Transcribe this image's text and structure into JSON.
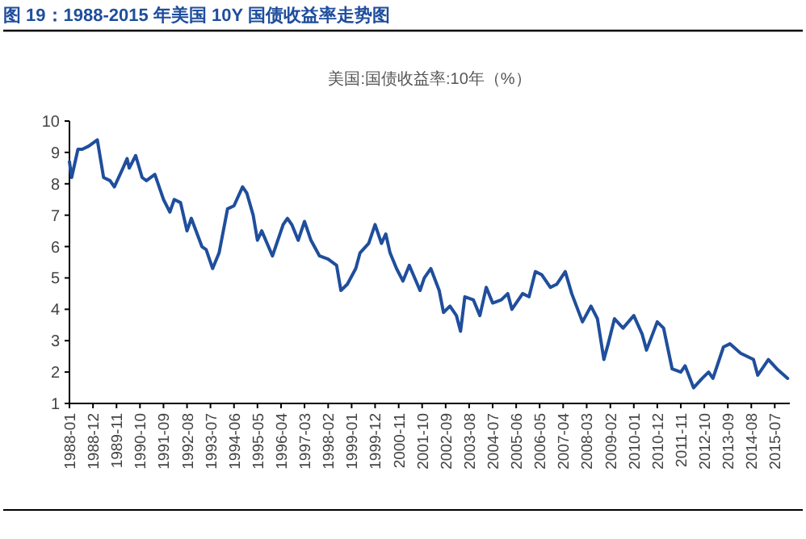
{
  "chart_data": {
    "type": "line",
    "title": "图 19：1988-2015 年美国 10Y 国债收益率走势图",
    "subtitle": "美国:国债收益率:10年（%）",
    "x": [
      "1988-01",
      "1988-02",
      "1988-05",
      "1988-07",
      "1988-10",
      "1989-02",
      "1989-05",
      "1989-08",
      "1989-10",
      "1990-02",
      "1990-04",
      "1990-05",
      "1990-08",
      "1990-11",
      "1991-01",
      "1991-05",
      "1991-09",
      "1991-12",
      "1992-02",
      "1992-05",
      "1992-08",
      "1992-10",
      "1993-03",
      "1993-05",
      "1993-08",
      "1993-11",
      "1994-03",
      "1994-06",
      "1994-10",
      "1994-12",
      "1995-03",
      "1995-05",
      "1995-07",
      "1995-12",
      "1996-05",
      "1996-07",
      "1996-09",
      "1996-12",
      "1997-03",
      "1997-06",
      "1997-10",
      "1998-02",
      "1998-06",
      "1998-08",
      "1998-11",
      "1999-03",
      "1999-05",
      "1999-09",
      "1999-12",
      "2000-03",
      "2000-05",
      "2000-07",
      "2000-10",
      "2001-01",
      "2001-04",
      "2001-09",
      "2001-11",
      "2002-02",
      "2002-06",
      "2002-08",
      "2002-11",
      "2003-02",
      "2003-04",
      "2003-06",
      "2003-10",
      "2004-01",
      "2004-04",
      "2004-07",
      "2004-11",
      "2005-02",
      "2005-04",
      "2005-09",
      "2005-12",
      "2006-03",
      "2006-06",
      "2006-10",
      "2007-01",
      "2007-05",
      "2007-08",
      "2008-01",
      "2008-05",
      "2008-08",
      "2008-11",
      "2009-01",
      "2009-04",
      "2009-08",
      "2010-01",
      "2010-05",
      "2010-07",
      "2010-12",
      "2011-03",
      "2011-07",
      "2011-11",
      "2012-01",
      "2012-05",
      "2012-09",
      "2012-12",
      "2013-02",
      "2013-07",
      "2013-10",
      "2014-03",
      "2014-09",
      "2014-11",
      "2015-04",
      "2015-08",
      "2016-01"
    ],
    "series": [
      {
        "color": "#1f4e9c",
        "values": [
          8.7,
          8.2,
          9.1,
          9.1,
          9.2,
          9.4,
          8.2,
          8.1,
          7.9,
          8.5,
          8.8,
          8.5,
          8.9,
          8.2,
          8.1,
          8.3,
          7.5,
          7.1,
          7.5,
          7.4,
          6.5,
          6.9,
          6.0,
          5.9,
          5.3,
          5.8,
          7.2,
          7.3,
          7.9,
          7.7,
          7.0,
          6.2,
          6.5,
          5.7,
          6.7,
          6.9,
          6.7,
          6.2,
          6.8,
          6.2,
          5.7,
          5.6,
          5.4,
          4.6,
          4.8,
          5.3,
          5.8,
          6.1,
          6.7,
          6.1,
          6.4,
          5.8,
          5.3,
          4.9,
          5.4,
          4.6,
          5.0,
          5.3,
          4.6,
          3.9,
          4.1,
          3.8,
          3.3,
          4.4,
          4.3,
          3.8,
          4.7,
          4.2,
          4.3,
          4.5,
          4.0,
          4.5,
          4.4,
          5.2,
          5.1,
          4.7,
          4.8,
          5.2,
          4.5,
          3.6,
          4.1,
          3.7,
          2.4,
          2.9,
          3.7,
          3.4,
          3.8,
          3.2,
          2.7,
          3.6,
          3.4,
          2.1,
          2.0,
          2.2,
          1.5,
          1.8,
          2.0,
          1.8,
          2.8,
          2.9,
          2.6,
          2.4,
          1.9,
          2.4,
          2.1,
          1.8
        ]
      }
    ],
    "xlim": [
      "1988-01",
      "2016-02"
    ],
    "xticks": [
      "1988-01",
      "1988-12",
      "1989-11",
      "1990-10",
      "1991-09",
      "1992-08",
      "1993-07",
      "1994-06",
      "1995-05",
      "1996-04",
      "1997-03",
      "1998-02",
      "1999-01",
      "1999-12",
      "2000-11",
      "2001-10",
      "2002-09",
      "2003-08",
      "2004-07",
      "2005-06",
      "2006-05",
      "2007-04",
      "2008-03",
      "2009-02",
      "2010-01",
      "2010-12",
      "2011-11",
      "2012-10",
      "2013-09",
      "2014-08",
      "2015-07"
    ],
    "ylim": [
      1,
      10
    ],
    "yticks": [
      1,
      2,
      3,
      4,
      5,
      6,
      7,
      8,
      9,
      10
    ]
  }
}
